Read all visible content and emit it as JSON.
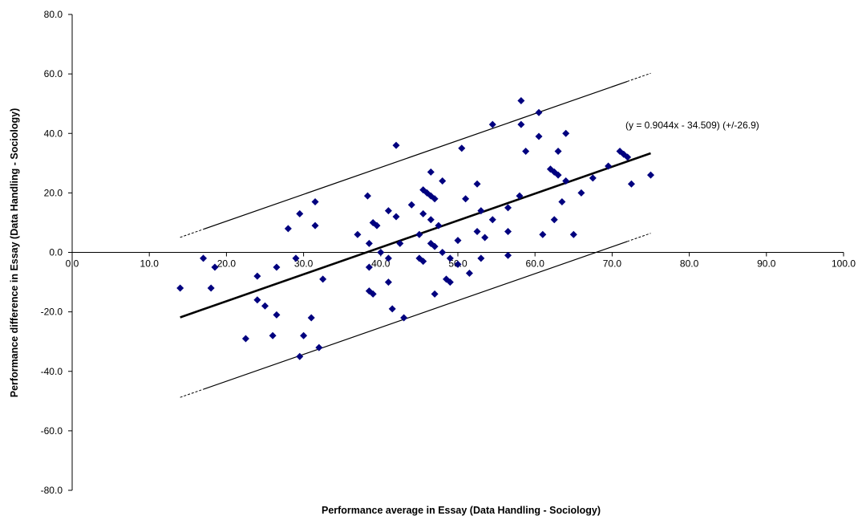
{
  "chart_data": {
    "type": "scatter",
    "title": "",
    "xlabel": "Performance average in Essay (Data Handling - Sociology)",
    "ylabel": "Performance difference in Essay (Data Handling - Sociology)",
    "xlim": [
      0,
      100
    ],
    "ylim": [
      -80,
      80
    ],
    "x_ticks": [
      0,
      10,
      20,
      30,
      40,
      50,
      60,
      70,
      80,
      90,
      100
    ],
    "y_ticks": [
      -80,
      -60,
      -40,
      -20,
      0,
      20,
      40,
      60,
      80
    ],
    "x_tick_labels": [
      "0.0",
      "10.0",
      "20.0",
      "30.0",
      "40.0",
      "50.0",
      "60.0",
      "70.0",
      "80.0",
      "90.0",
      "100.0"
    ],
    "y_tick_labels": [
      "-80.0",
      "-60.0",
      "-40.0",
      "-20.0",
      "0.0",
      "20.0",
      "40.0",
      "60.0",
      "80.0"
    ],
    "grid": false,
    "legend": "none",
    "marker_color": "#00007f",
    "line_color": "#000000",
    "annotation": "(y = 0.9044x - 34.509)  (+/-26.9)",
    "regression": {
      "slope": 0.9044,
      "intercept": -34.509,
      "band": 26.9,
      "x_range": [
        14,
        75
      ]
    },
    "series": [
      {
        "points": [
          [
            14,
            -12
          ],
          [
            17,
            -2
          ],
          [
            18,
            -12
          ],
          [
            18.5,
            -5
          ],
          [
            22.5,
            -29
          ],
          [
            24,
            -8
          ],
          [
            24,
            -16
          ],
          [
            25,
            -18
          ],
          [
            26,
            -28
          ],
          [
            26.5,
            -21
          ],
          [
            26.5,
            -5
          ],
          [
            28,
            8
          ],
          [
            29,
            -2
          ],
          [
            29.5,
            13
          ],
          [
            29.5,
            -35
          ],
          [
            30,
            -28
          ],
          [
            31,
            -22
          ],
          [
            31.5,
            9
          ],
          [
            31.5,
            17
          ],
          [
            32,
            -32
          ],
          [
            32.5,
            -9
          ],
          [
            37,
            6
          ],
          [
            38.3,
            19
          ],
          [
            38.5,
            3
          ],
          [
            38.5,
            -5
          ],
          [
            38.5,
            -13
          ],
          [
            39,
            10
          ],
          [
            39,
            -14
          ],
          [
            39.5,
            9
          ],
          [
            40,
            0
          ],
          [
            41,
            14
          ],
          [
            41,
            -2
          ],
          [
            41,
            -10
          ],
          [
            41.5,
            -19
          ],
          [
            42,
            36
          ],
          [
            42,
            12
          ],
          [
            42.5,
            3
          ],
          [
            43,
            -22
          ],
          [
            44,
            16
          ],
          [
            45,
            6
          ],
          [
            45,
            -2
          ],
          [
            45.5,
            -3
          ],
          [
            45.5,
            21
          ],
          [
            45.5,
            13
          ],
          [
            46,
            20
          ],
          [
            46.5,
            19
          ],
          [
            46.5,
            27
          ],
          [
            46.5,
            11
          ],
          [
            46.5,
            3
          ],
          [
            47,
            18
          ],
          [
            47,
            2
          ],
          [
            47,
            -14
          ],
          [
            47.5,
            9
          ],
          [
            48,
            24
          ],
          [
            48,
            0
          ],
          [
            48.5,
            -9
          ],
          [
            49,
            -2
          ],
          [
            49,
            -10
          ],
          [
            50,
            4
          ],
          [
            50,
            -4
          ],
          [
            50.5,
            35
          ],
          [
            51,
            18
          ],
          [
            51.5,
            -7
          ],
          [
            52.5,
            7
          ],
          [
            52.5,
            23
          ],
          [
            53,
            14
          ],
          [
            53,
            -2
          ],
          [
            53.5,
            5
          ],
          [
            54.5,
            11
          ],
          [
            54.5,
            43
          ],
          [
            56.5,
            15
          ],
          [
            56.5,
            7
          ],
          [
            56.5,
            -1
          ],
          [
            58,
            19
          ],
          [
            58.2,
            51
          ],
          [
            58.2,
            43
          ],
          [
            58.8,
            34
          ],
          [
            60.5,
            47
          ],
          [
            60.5,
            39
          ],
          [
            61,
            6
          ],
          [
            62,
            28
          ],
          [
            62.5,
            27
          ],
          [
            62.5,
            11
          ],
          [
            63,
            26
          ],
          [
            63,
            34
          ],
          [
            63.5,
            17
          ],
          [
            64,
            24
          ],
          [
            64,
            40
          ],
          [
            65,
            6
          ],
          [
            66,
            20
          ],
          [
            67.5,
            25
          ],
          [
            69.5,
            29
          ],
          [
            71,
            34
          ],
          [
            71.5,
            33
          ],
          [
            72,
            32
          ],
          [
            72.5,
            23
          ],
          [
            75,
            26
          ]
        ]
      }
    ]
  }
}
